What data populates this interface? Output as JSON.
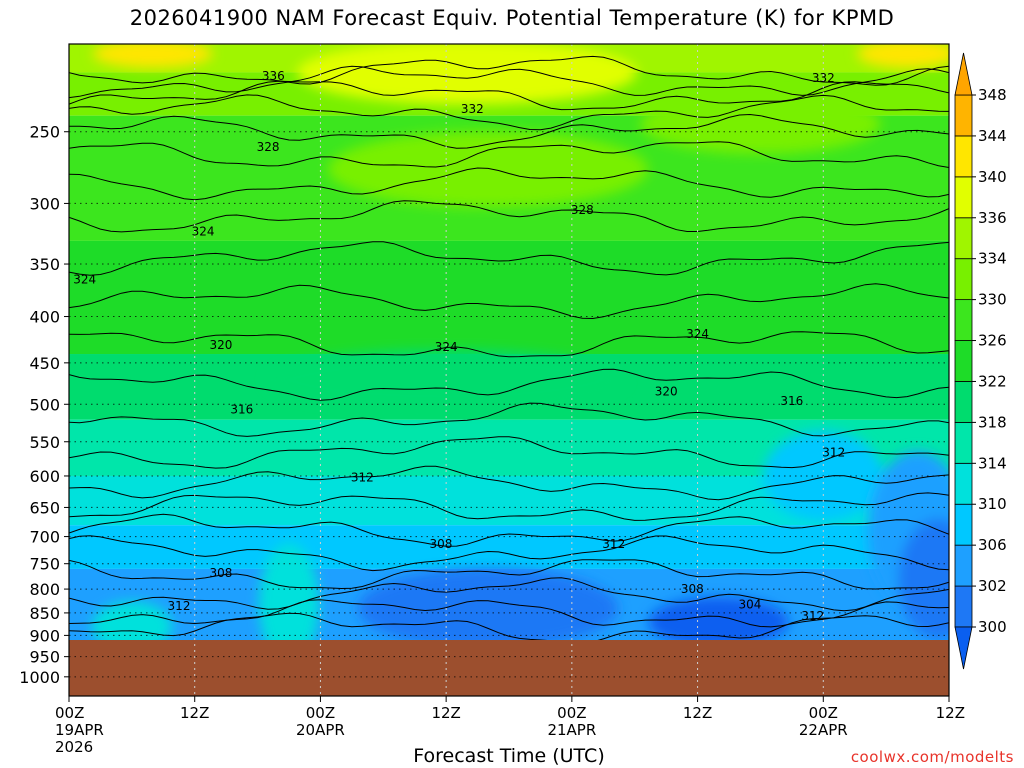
{
  "chart_data": {
    "type": "heatmap",
    "title": "2026041900 NAM Forecast Equiv. Potential Temperature (K) for KPMD",
    "xlabel": "Forecast Time (UTC)",
    "ylabel": "",
    "credit": "coolwx.com/modelts",
    "x_ticks": [
      {
        "hour": 0,
        "lines": [
          "00Z",
          "19APR",
          "2026"
        ]
      },
      {
        "hour": 12,
        "lines": [
          "12Z"
        ]
      },
      {
        "hour": 24,
        "lines": [
          "00Z",
          "20APR"
        ]
      },
      {
        "hour": 36,
        "lines": [
          "12Z"
        ]
      },
      {
        "hour": 48,
        "lines": [
          "00Z",
          "21APR"
        ]
      },
      {
        "hour": 60,
        "lines": [
          "12Z"
        ]
      },
      {
        "hour": 72,
        "lines": [
          "00Z",
          "22APR"
        ]
      },
      {
        "hour": 84,
        "lines": [
          "12Z"
        ]
      }
    ],
    "xlim": [
      0,
      84
    ],
    "y_ticks": [
      250,
      300,
      350,
      400,
      450,
      500,
      550,
      600,
      650,
      700,
      750,
      800,
      850,
      900,
      950,
      1000
    ],
    "ylim_hpa": [
      200,
      1050
    ],
    "y_scale": "log-pressure",
    "surface_pressure_hpa": 915,
    "grid": true,
    "colorbar": {
      "levels": [
        300,
        302,
        306,
        310,
        314,
        318,
        322,
        326,
        330,
        334,
        336,
        340,
        344,
        348
      ],
      "label_levels": [
        300,
        302,
        306,
        310,
        314,
        318,
        322,
        326,
        330,
        334,
        336,
        340,
        344,
        348
      ],
      "colors": [
        "#0a5ff0",
        "#1e78f5",
        "#1ea0ff",
        "#00c8ff",
        "#00e1dc",
        "#00e6aa",
        "#00dc6e",
        "#1edc28",
        "#3ce61e",
        "#78f000",
        "#a0f500",
        "#e1ff00",
        "#ffe600",
        "#ffb400"
      ]
    },
    "contour_labels": [
      {
        "text": "336",
        "hour": 19.5,
        "p": 217
      },
      {
        "text": "332",
        "hour": 72,
        "p": 218
      },
      {
        "text": "332",
        "hour": 38.5,
        "p": 236
      },
      {
        "text": "328",
        "hour": 19,
        "p": 260
      },
      {
        "text": "328",
        "hour": 49,
        "p": 305
      },
      {
        "text": "324",
        "hour": 12.8,
        "p": 322
      },
      {
        "text": "324",
        "hour": 1.5,
        "p": 364
      },
      {
        "text": "324",
        "hour": 36,
        "p": 432
      },
      {
        "text": "324",
        "hour": 60,
        "p": 418
      },
      {
        "text": "320",
        "hour": 14.5,
        "p": 430
      },
      {
        "text": "320",
        "hour": 57,
        "p": 484
      },
      {
        "text": "316",
        "hour": 16.5,
        "p": 507
      },
      {
        "text": "316",
        "hour": 69,
        "p": 496
      },
      {
        "text": "312",
        "hour": 28,
        "p": 602
      },
      {
        "text": "312",
        "hour": 73,
        "p": 565
      },
      {
        "text": "312",
        "hour": 52,
        "p": 713
      },
      {
        "text": "308",
        "hour": 35.5,
        "p": 713
      },
      {
        "text": "308",
        "hour": 14.5,
        "p": 768
      },
      {
        "text": "308",
        "hour": 59.5,
        "p": 800
      },
      {
        "text": "312",
        "hour": 10.5,
        "p": 835
      },
      {
        "text": "304",
        "hour": 65,
        "p": 832
      },
      {
        "text": "312",
        "hour": 71,
        "p": 857
      }
    ]
  }
}
